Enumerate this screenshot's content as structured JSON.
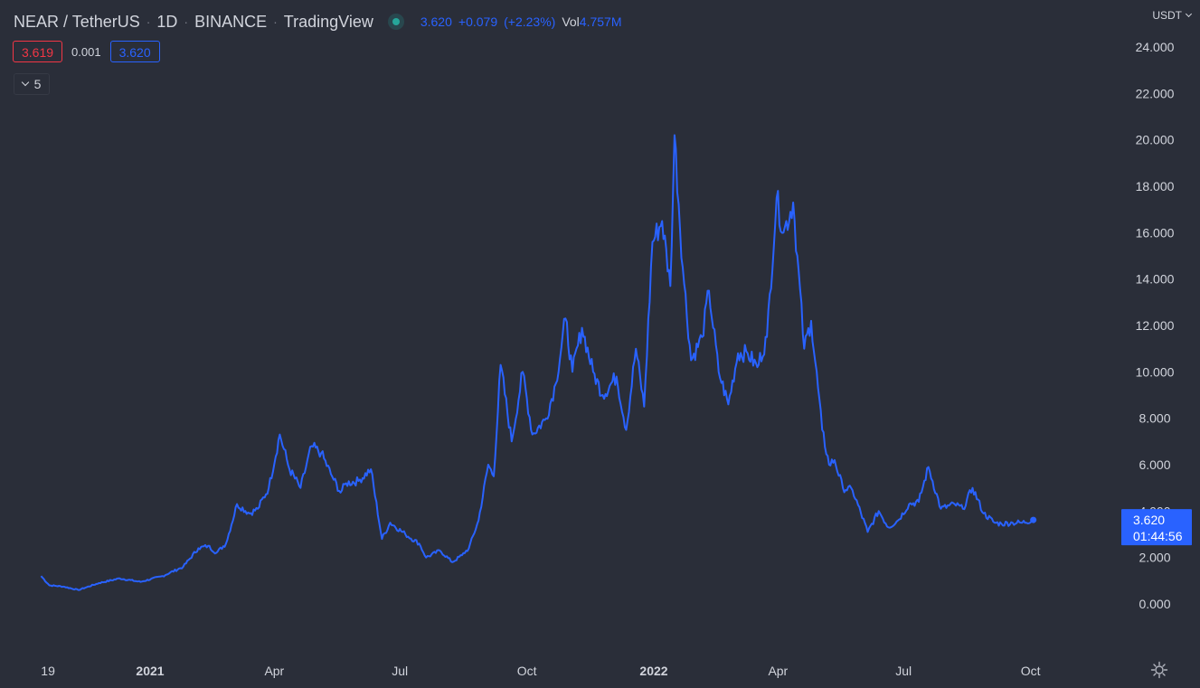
{
  "header": {
    "symbol": "NEAR / TetherUS",
    "interval": "1D",
    "exchange": "BINANCE",
    "platform": "TradingView",
    "market_status": "open",
    "last": "3.620",
    "change": "+0.079",
    "change_pct": "(+2.23%)",
    "vol_label": "Vol",
    "vol_value": "4.757M"
  },
  "quotes": {
    "bid": "3.619",
    "spread": "0.001",
    "ask": "3.620"
  },
  "indicators_toggle": {
    "count": "5"
  },
  "price_axis": {
    "currency": "USDT"
  },
  "icons": {
    "settings": "gear-icon",
    "collapse": "chevron-down-icon",
    "currency_menu": "chevron-down-icon",
    "status": "market-open-dot"
  },
  "colors": {
    "background": "#2a2e39",
    "line": "#2962ff",
    "down": "#f23645",
    "up": "#26a69a",
    "text": "#d1d4dc"
  },
  "chart_data": {
    "type": "line",
    "ylim": [
      0,
      24
    ],
    "grid": false,
    "y_ticks": [
      "0.000",
      "2.000",
      "4.000",
      "6.000",
      "8.000",
      "10.000",
      "12.000",
      "14.000",
      "16.000",
      "18.000",
      "20.000",
      "22.000",
      "24.000"
    ],
    "x_ticks": [
      {
        "label": "19",
        "date": "2020-10-19",
        "bold": false
      },
      {
        "label": "2021",
        "date": "2021-01-01",
        "bold": true
      },
      {
        "label": "Apr",
        "date": "2021-04-01",
        "bold": false
      },
      {
        "label": "Jul",
        "date": "2021-07-01",
        "bold": false
      },
      {
        "label": "Oct",
        "date": "2021-10-01",
        "bold": false
      },
      {
        "label": "2022",
        "date": "2022-01-01",
        "bold": true
      },
      {
        "label": "Apr",
        "date": "2022-04-01",
        "bold": false
      },
      {
        "label": "Jul",
        "date": "2022-07-01",
        "bold": false
      },
      {
        "label": "Oct",
        "date": "2022-10-01",
        "bold": false
      }
    ],
    "last_price_label": "3.620",
    "countdown": "01:44:56",
    "series": [
      {
        "color": "#2962ff",
        "x": [
          "2020-10-14",
          "2020-10-20",
          "2020-10-30",
          "2020-11-10",
          "2020-11-25",
          "2020-12-10",
          "2020-12-25",
          "2021-01-10",
          "2021-01-25",
          "2021-02-05",
          "2021-02-12",
          "2021-02-18",
          "2021-02-25",
          "2021-03-05",
          "2021-03-14",
          "2021-03-20",
          "2021-03-28",
          "2021-04-05",
          "2021-04-12",
          "2021-04-20",
          "2021-04-28",
          "2021-05-05",
          "2021-05-12",
          "2021-05-19",
          "2021-05-23",
          "2021-06-01",
          "2021-06-10",
          "2021-06-18",
          "2021-06-24",
          "2021-07-05",
          "2021-07-15",
          "2021-07-20",
          "2021-07-30",
          "2021-08-08",
          "2021-08-15",
          "2021-08-20",
          "2021-08-27",
          "2021-09-03",
          "2021-09-07",
          "2021-09-12",
          "2021-09-20",
          "2021-09-28",
          "2021-10-05",
          "2021-10-15",
          "2021-10-22",
          "2021-10-29",
          "2021-11-03",
          "2021-11-10",
          "2021-11-18",
          "2021-11-25",
          "2021-12-05",
          "2021-12-12",
          "2021-12-19",
          "2021-12-25",
          "2021-12-31",
          "2022-01-07",
          "2022-01-13",
          "2022-01-16",
          "2022-01-22",
          "2022-01-28",
          "2022-02-05",
          "2022-02-10",
          "2022-02-17",
          "2022-02-24",
          "2022-03-03",
          "2022-03-10",
          "2022-03-17",
          "2022-03-24",
          "2022-03-31",
          "2022-04-05",
          "2022-04-12",
          "2022-04-20",
          "2022-04-25",
          "2022-05-03",
          "2022-05-08",
          "2022-05-12",
          "2022-05-18",
          "2022-05-25",
          "2022-06-05",
          "2022-06-13",
          "2022-06-20",
          "2022-06-27",
          "2022-07-05",
          "2022-07-12",
          "2022-07-19",
          "2022-07-28",
          "2022-08-07",
          "2022-08-13",
          "2022-08-20",
          "2022-08-28",
          "2022-09-05",
          "2022-09-10",
          "2022-09-18",
          "2022-09-25",
          "2022-10-03"
        ],
        "y": [
          1.2,
          0.8,
          0.75,
          0.6,
          0.9,
          1.1,
          0.95,
          1.2,
          1.6,
          2.4,
          2.5,
          2.2,
          2.6,
          4.3,
          3.9,
          4.1,
          5.0,
          7.3,
          5.8,
          5.0,
          6.8,
          6.5,
          5.6,
          4.8,
          5.2,
          5.3,
          5.8,
          2.8,
          3.5,
          3.0,
          2.6,
          2.0,
          2.3,
          1.8,
          2.1,
          2.4,
          3.6,
          6.0,
          5.5,
          10.3,
          7.0,
          10.0,
          7.3,
          8.0,
          9.5,
          12.3,
          10.0,
          11.9,
          10.0,
          9.0,
          9.8,
          7.5,
          11.0,
          8.5,
          15.6,
          16.5,
          13.7,
          20.2,
          14.5,
          10.5,
          11.5,
          13.5,
          10.0,
          8.6,
          10.8,
          10.8,
          10.2,
          11.5,
          17.5,
          16.0,
          17.3,
          11.0,
          12.2,
          7.5,
          6.0,
          6.2,
          5.0,
          4.9,
          3.1,
          4.0,
          3.3,
          3.6,
          4.3,
          4.4,
          5.9,
          4.1,
          4.3,
          4.1,
          5.0,
          3.9,
          3.5,
          3.45,
          3.5,
          3.5,
          3.62
        ]
      }
    ]
  }
}
